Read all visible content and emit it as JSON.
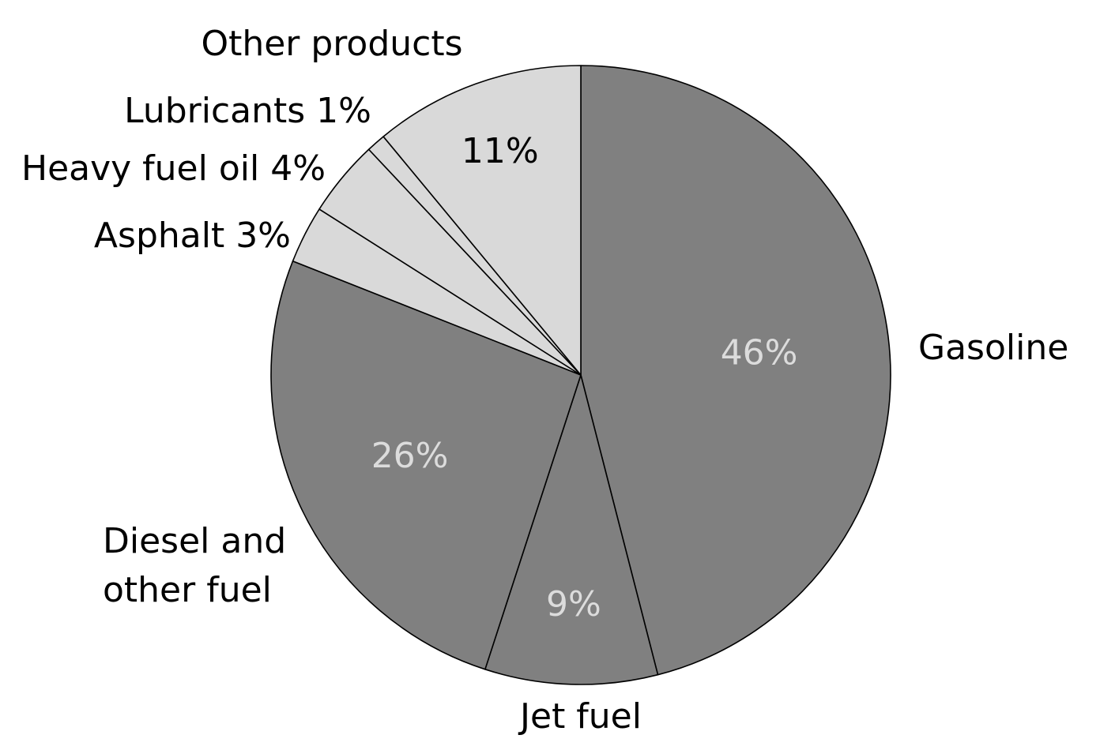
{
  "chart_data": {
    "type": "pie",
    "start": "12 o'clock",
    "direction": "clockwise",
    "slices": [
      {
        "label": "Gasoline",
        "value": 46,
        "value_label": "46%",
        "color": "#808080",
        "text_color": "#dcdcdc"
      },
      {
        "label": "Jet fuel",
        "value": 9,
        "value_label": "9%",
        "color": "#808080",
        "text_color": "#dcdcdc"
      },
      {
        "label_lines": [
          "Diesel and",
          "other fuel"
        ],
        "value": 26,
        "value_label": "26%",
        "color": "#808080",
        "text_color": "#dcdcdc"
      },
      {
        "label": "Asphalt  3%",
        "value": 3,
        "color": "#d9d9d9"
      },
      {
        "label": "Heavy fuel oil  4%",
        "value": 4,
        "color": "#d9d9d9"
      },
      {
        "label": "Lubricants  1%",
        "value": 1,
        "color": "#d9d9d9"
      },
      {
        "label": "Other products",
        "value": 11,
        "value_label": "11%",
        "color": "#d9d9d9",
        "text_color": "#000000"
      }
    ]
  }
}
